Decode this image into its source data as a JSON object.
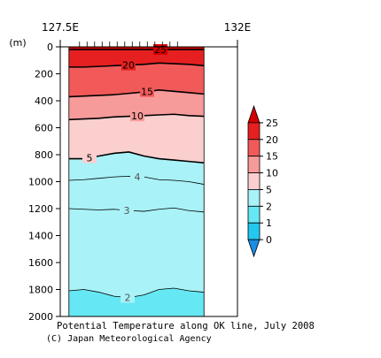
{
  "chart_data": {
    "type": "heatmap",
    "title": "Potential Temperature along OK line, July 2008",
    "credit": "(C) Japan Meteorological Agency",
    "x_axis": {
      "ticks": [
        "127.5E",
        "132E"
      ],
      "range": [
        127.5,
        132
      ]
    },
    "y_axis": {
      "unit": "(m)",
      "ticks": [
        0,
        200,
        400,
        600,
        800,
        1000,
        1200,
        1400,
        1600,
        1800,
        2000
      ],
      "range": [
        0,
        2000
      ],
      "reversed": true
    },
    "section": {
      "x_start": 127.72,
      "x_end": 131.15
    },
    "colorbar": {
      "labels": [
        "25",
        "20",
        "15",
        "10",
        "5",
        "2",
        "1",
        "0"
      ],
      "bins": [
        {
          "from": 25,
          "to": 27,
          "color": "#d40000"
        },
        {
          "from": 20,
          "to": 25,
          "color": "#e62020"
        },
        {
          "from": 15,
          "to": 20,
          "color": "#f25a5a"
        },
        {
          "from": 10,
          "to": 15,
          "color": "#f79a9a"
        },
        {
          "from": 5,
          "to": 10,
          "color": "#fccfcf"
        },
        {
          "from": 2,
          "to": 5,
          "color": "#a8f2f8"
        },
        {
          "from": 1,
          "to": 2,
          "color": "#66e8f4"
        },
        {
          "from": 0,
          "to": 1,
          "color": "#22c8f0"
        },
        {
          "from": -1,
          "to": 0,
          "color": "#1a8ee0"
        }
      ]
    },
    "contours": [
      {
        "level": 25,
        "label": "25",
        "bold": true,
        "depths": [
          20,
          20,
          20,
          20,
          20,
          20,
          20,
          20,
          20,
          20
        ]
      },
      {
        "level": 20,
        "label": "20",
        "bold": true,
        "depths": [
          150,
          150,
          145,
          140,
          135,
          130,
          120,
          125,
          130,
          140
        ]
      },
      {
        "level": 15,
        "label": "15",
        "bold": true,
        "depths": [
          370,
          365,
          360,
          355,
          345,
          335,
          320,
          330,
          340,
          350
        ]
      },
      {
        "level": 10,
        "label": "10",
        "bold": true,
        "depths": [
          540,
          535,
          530,
          520,
          515,
          510,
          505,
          500,
          510,
          515
        ]
      },
      {
        "level": 5,
        "label": "5",
        "bold": true,
        "depths": [
          830,
          830,
          810,
          790,
          780,
          810,
          830,
          840,
          850,
          860
        ]
      },
      {
        "level": 4,
        "label": "4",
        "bold": false,
        "depths": [
          990,
          985,
          975,
          965,
          960,
          965,
          985,
          990,
          1000,
          1020
        ]
      },
      {
        "level": 3,
        "label": "3",
        "bold": false,
        "depths": [
          1200,
          1205,
          1210,
          1205,
          1215,
          1220,
          1205,
          1195,
          1215,
          1225
        ]
      },
      {
        "level": 2,
        "label": "2",
        "bold": false,
        "depths": [
          1810,
          1800,
          1820,
          1850,
          1860,
          1840,
          1800,
          1790,
          1810,
          1820
        ]
      }
    ]
  }
}
